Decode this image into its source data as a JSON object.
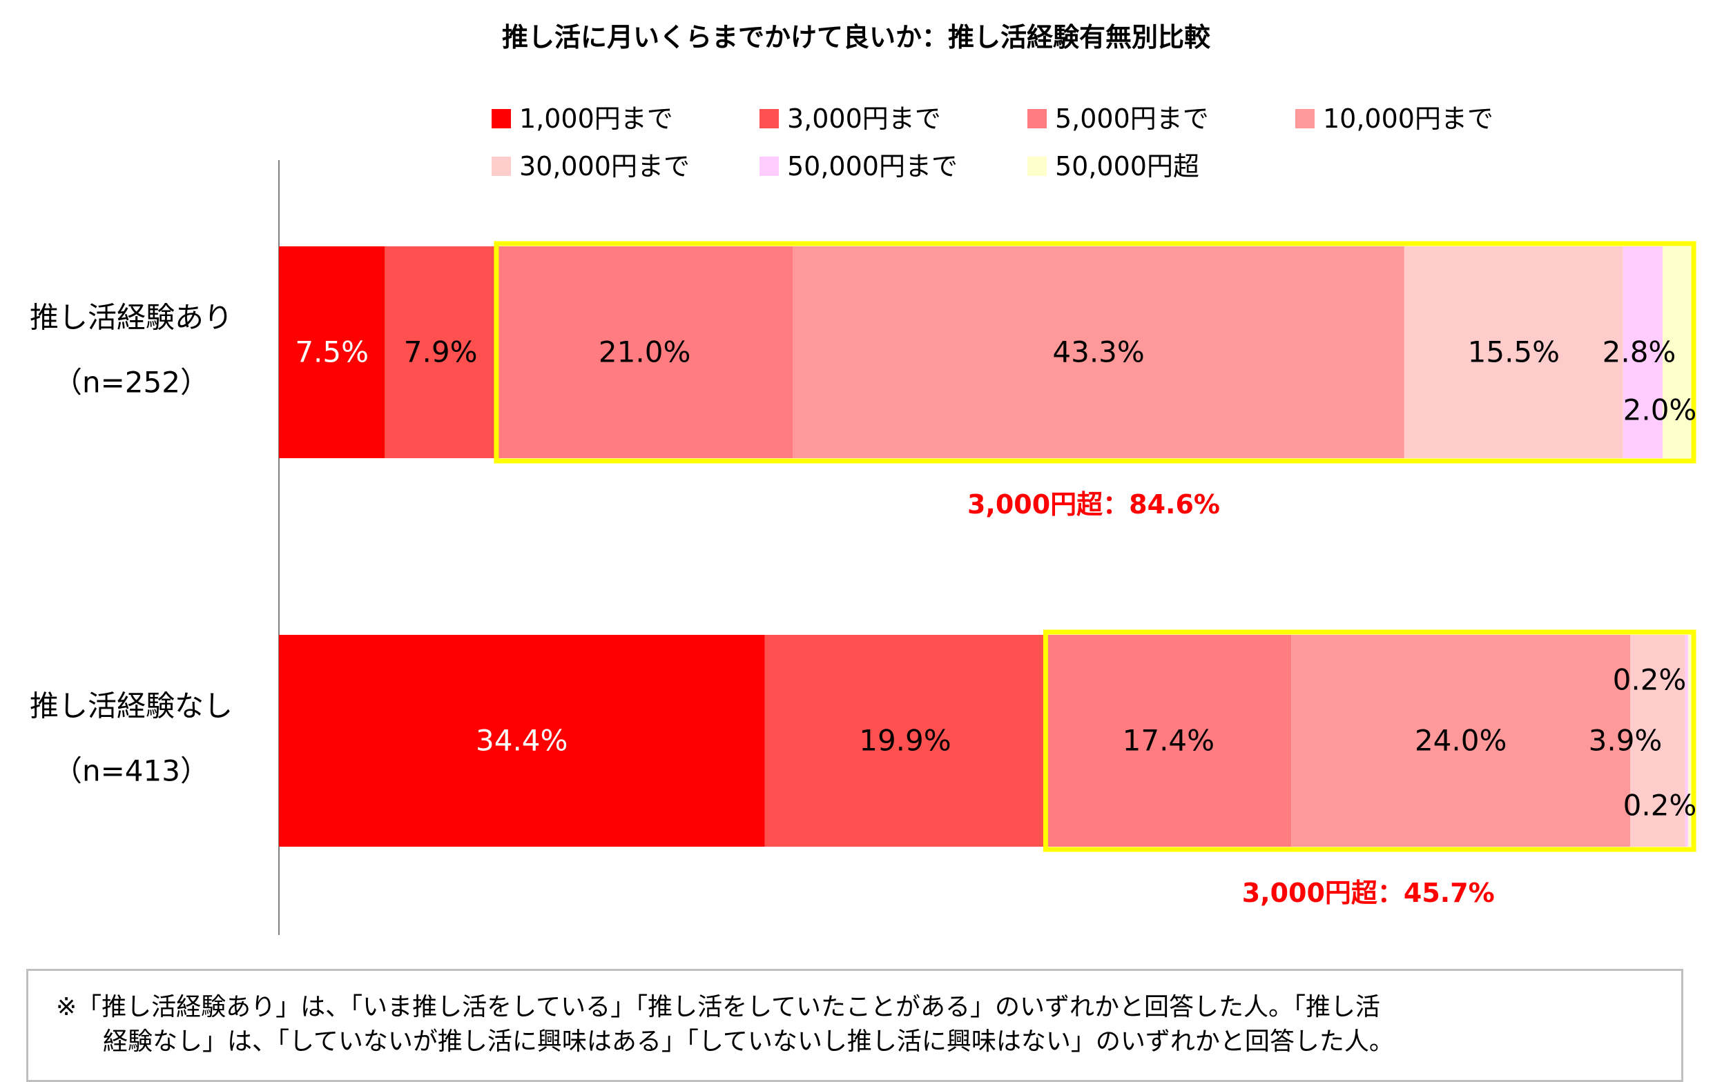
{
  "chart_data": {
    "type": "bar",
    "orientation": "horizontal",
    "stacked": true,
    "percent": true,
    "title": "推し活に月いくらまでかけて良いか：推し活経験有無別比較",
    "categories": [
      "推し活経験あり",
      "推し活経験なし"
    ],
    "category_sublabels": [
      "（n=252）",
      "（n=413）"
    ],
    "legend_position": "top",
    "series": [
      {
        "name": "1,000円まで",
        "color": "#ff0000",
        "values": [
          7.5,
          34.4
        ],
        "labels": [
          "7.5%",
          "34.4%"
        ]
      },
      {
        "name": "3,000円まで",
        "color": "#ff5050",
        "values": [
          7.9,
          19.9
        ],
        "labels": [
          "7.9%",
          "19.9%"
        ]
      },
      {
        "name": "5,000円まで",
        "color": "#ff7c80",
        "values": [
          21.0,
          17.4
        ],
        "labels": [
          "21.0%",
          "17.4%"
        ]
      },
      {
        "name": "10,000円まで",
        "color": "#ff9999",
        "values": [
          43.3,
          24.0
        ],
        "labels": [
          "43.3%",
          "24.0%"
        ]
      },
      {
        "name": "30,000円まで",
        "color": "#ffcccc",
        "values": [
          15.5,
          3.9
        ],
        "labels": [
          "15.5%",
          "3.9%"
        ]
      },
      {
        "name": "50,000円まで",
        "color": "#ffccff",
        "values": [
          2.8,
          0.2
        ],
        "labels": [
          "2.8%",
          "0.2%"
        ]
      },
      {
        "name": "50,000円超",
        "color": "#ffffcc",
        "values": [
          2.0,
          0.2
        ],
        "labels": [
          "2.0%",
          "0.2%"
        ]
      }
    ],
    "annotations": [
      {
        "text": "3,000円超：84.6%",
        "category": "推し活経験あり",
        "color": "#ff0000"
      },
      {
        "text": "3,000円超：45.7%",
        "category": "推し活経験なし",
        "color": "#ff0000"
      }
    ],
    "highlight_color": "#ffff00",
    "xlim": [
      0,
      100
    ],
    "grid": false
  },
  "footnote": {
    "line1": "※「推し活経験あり」は、「いま推し活をしている」「推し活をしていたことがある」のいずれかと回答した人。「推し活",
    "line2": "経験なし」は、「していないが推し活に興味はある」「していないし推し活に興味はない」のいずれかと回答した人。"
  }
}
